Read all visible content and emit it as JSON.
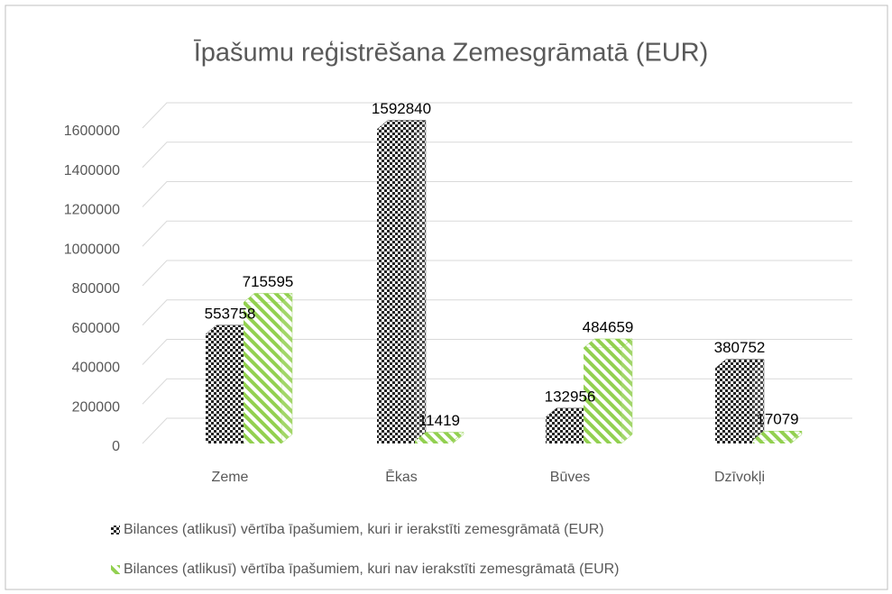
{
  "chart_data": {
    "type": "bar3d",
    "title": "Īpašumu reģistrēšana Zemesgrāmatā (EUR)",
    "categories": [
      "Zeme",
      "Ēkas",
      "Būves",
      "Dzīvokļi"
    ],
    "series": [
      {
        "name": "Bilances (atlikusī) vērtība īpašumiem, kuri ir ierakstīti zemesgrāmatā (EUR)",
        "color": "#262626",
        "values": [
          553758,
          1592840,
          132956,
          380752
        ]
      },
      {
        "name": "Bilances (atlikusī) vērtība īpašumiem, kuri nav ierakstīti zemesgrāmatā (EUR)",
        "color": "#92d050",
        "values": [
          715595,
          11419,
          484659,
          17079
        ]
      }
    ],
    "ylim": [
      0,
      1600000
    ],
    "yticks": [
      0,
      200000,
      400000,
      600000,
      800000,
      1000000,
      1200000,
      1400000,
      1600000
    ],
    "grid": true,
    "legend": "bottom"
  }
}
